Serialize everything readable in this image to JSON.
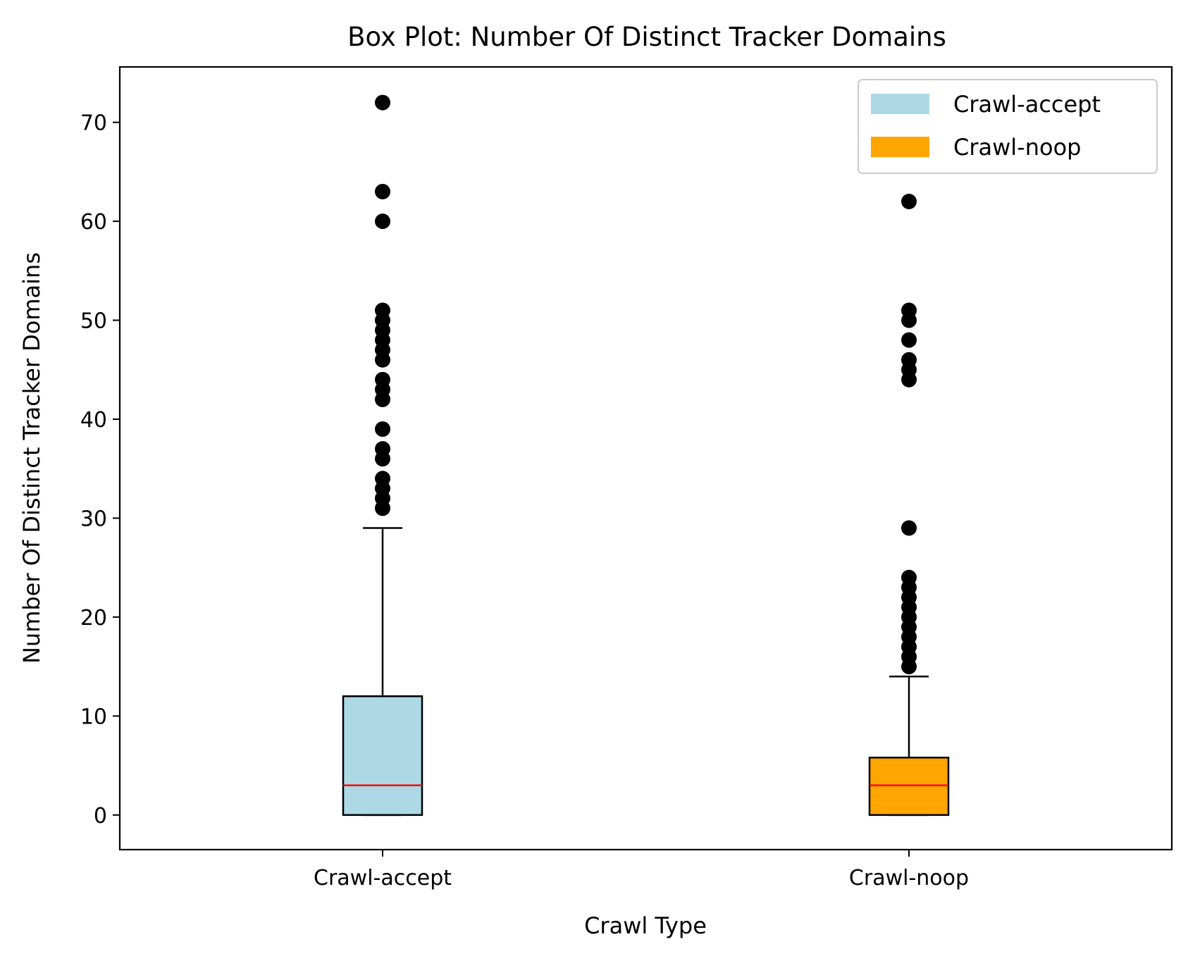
{
  "chart_data": {
    "type": "box",
    "title": "Box Plot: Number Of Distinct Tracker Domains",
    "xlabel": "Crawl Type",
    "ylabel": "Number Of Distinct Tracker Domains",
    "ylim": [
      -3.5,
      75.6
    ],
    "yticks": [
      0,
      10,
      20,
      30,
      40,
      50,
      60,
      70
    ],
    "categories": [
      "Crawl-accept",
      "Crawl-noop"
    ],
    "legend": {
      "position": "upper right",
      "entries": [
        {
          "label": "Crawl-accept",
          "color": "#add8e6"
        },
        {
          "label": "Crawl-noop",
          "color": "#ffa500"
        }
      ]
    },
    "boxes": [
      {
        "name": "Crawl-accept",
        "color": "#add8e6",
        "whisker_low": 0,
        "q1": 0,
        "median": 3,
        "q3": 12,
        "whisker_high": 29,
        "outliers": [
          31,
          32,
          33,
          34,
          36,
          37,
          39,
          42,
          43,
          44,
          46,
          47,
          48,
          49,
          50,
          51,
          60,
          63,
          72
        ]
      },
      {
        "name": "Crawl-noop",
        "color": "#ffa500",
        "whisker_low": 0,
        "q1": 0,
        "median": 3,
        "q3": 5.8,
        "whisker_high": 14,
        "outliers": [
          15,
          16,
          17,
          18,
          19,
          20,
          21,
          22,
          23,
          24,
          29,
          44,
          45,
          46,
          48,
          50,
          51,
          62
        ]
      }
    ],
    "median_color": "#ff0000",
    "outlier_color": "#000000",
    "grid": false
  }
}
